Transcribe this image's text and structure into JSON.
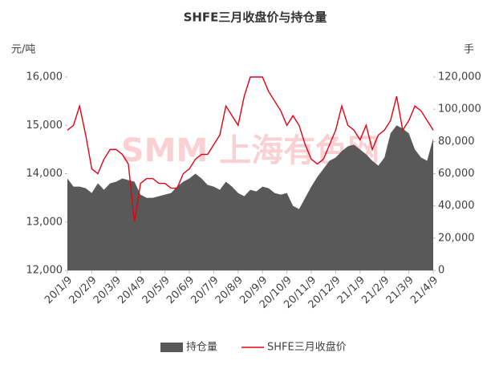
{
  "chart_data": {
    "type": "area-line",
    "title": "SHFE三月收盘价与持仓量",
    "y_label": "元/吨",
    "y2_label": "手",
    "watermark": "SMM 上海有色网",
    "categories": [
      "20/1/9",
      null,
      null,
      null,
      "20/2/9",
      null,
      null,
      null,
      "20/3/9",
      null,
      null,
      null,
      "20/4/9",
      null,
      null,
      null,
      "20/5/9",
      null,
      null,
      null,
      "20/6/9",
      null,
      null,
      null,
      "20/7/9",
      null,
      null,
      null,
      "20/8/9",
      null,
      null,
      null,
      "20/9/9",
      null,
      null,
      null,
      "20/10/9",
      null,
      null,
      null,
      "20/11/9",
      null,
      null,
      null,
      "20/12/9",
      null,
      null,
      null,
      "21/1/9",
      null,
      null,
      null,
      "21/2/9",
      null,
      null,
      null,
      "21/3/9",
      null,
      null,
      null,
      "21/4/9"
    ],
    "series": [
      {
        "name": "持仓量",
        "type": "area",
        "axis": "y2",
        "color": "#595959",
        "values": [
          57000,
          52000,
          52000,
          51000,
          48000,
          54000,
          50000,
          54000,
          55000,
          57000,
          56000,
          55000,
          47000,
          45000,
          45000,
          46000,
          47000,
          48000,
          52000,
          55000,
          57000,
          60000,
          57000,
          53000,
          52000,
          50000,
          55000,
          52000,
          48000,
          46000,
          50000,
          49000,
          52000,
          51000,
          48000,
          47000,
          48000,
          40000,
          38000,
          45000,
          52000,
          58000,
          63000,
          68000,
          70000,
          74000,
          77000,
          78000,
          75000,
          72000,
          68000,
          65000,
          70000,
          85000,
          90000,
          88000,
          85000,
          75000,
          70000,
          68000,
          82000
        ]
      },
      {
        "name": "SHFE三月收盘价",
        "type": "line",
        "color": "#e60012",
        "values": [
          14900,
          15000,
          15400,
          14800,
          14100,
          14000,
          14300,
          14500,
          14500,
          14400,
          14200,
          13000,
          13800,
          13900,
          13900,
          13800,
          13800,
          13700,
          13700,
          14000,
          14100,
          14300,
          14400,
          14400,
          14600,
          14800,
          15400,
          15200,
          15000,
          15600,
          16000,
          16000,
          16000,
          15700,
          15500,
          15300,
          15000,
          15200,
          15000,
          14600,
          14300,
          14200,
          14300,
          14600,
          14900,
          15400,
          15000,
          14900,
          14700,
          15000,
          14500,
          14800,
          14900,
          15100,
          15600,
          14900,
          15100,
          15400,
          15300,
          15100,
          14900
        ]
      }
    ],
    "ylim": [
      12000,
      16000
    ],
    "yticks": [
      {
        "value": 12000,
        "label": "12,000"
      },
      {
        "value": 13000,
        "label": "13,000"
      },
      {
        "value": 14000,
        "label": "14,000"
      },
      {
        "value": 15000,
        "label": "15,000"
      },
      {
        "value": 16000,
        "label": "16,000"
      }
    ],
    "y2lim": [
      0,
      120000
    ],
    "y2ticks": [
      0,
      {
        "value": 20000,
        "label": "20,000"
      },
      {
        "value": 40000,
        "label": "40,000"
      },
      {
        "value": 60000,
        "label": "60,000"
      },
      {
        "value": 80000,
        "label": "80,000"
      },
      {
        "value": 100000,
        "label": "100,000"
      },
      {
        "value": 120000,
        "label": "120,000"
      }
    ],
    "legend": "bottom"
  }
}
